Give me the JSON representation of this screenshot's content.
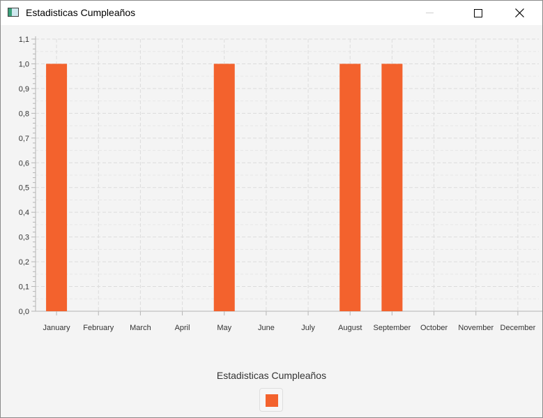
{
  "window": {
    "title": "Estadisticas Cumpleaños",
    "buttons": [
      "minimize",
      "maximize",
      "close"
    ]
  },
  "chart_data": {
    "type": "bar",
    "categories": [
      "January",
      "February",
      "March",
      "April",
      "May",
      "June",
      "July",
      "August",
      "September",
      "October",
      "November",
      "December"
    ],
    "series": [
      {
        "name": "",
        "values": [
          1.0,
          0,
          0,
          0,
          1.0,
          0,
          0,
          1.0,
          1.0,
          0,
          0,
          0
        ],
        "color": "#f3622d"
      }
    ],
    "ylim": [
      0.0,
      1.1
    ],
    "yticks": [
      "0,0",
      "0,1",
      "0,2",
      "0,3",
      "0,4",
      "0,5",
      "0,6",
      "0,7",
      "0,8",
      "0,9",
      "1,0",
      "1,1"
    ],
    "grid": true,
    "legend_title": "Estadisticas Cumpleaños",
    "legend_position": "bottom"
  }
}
